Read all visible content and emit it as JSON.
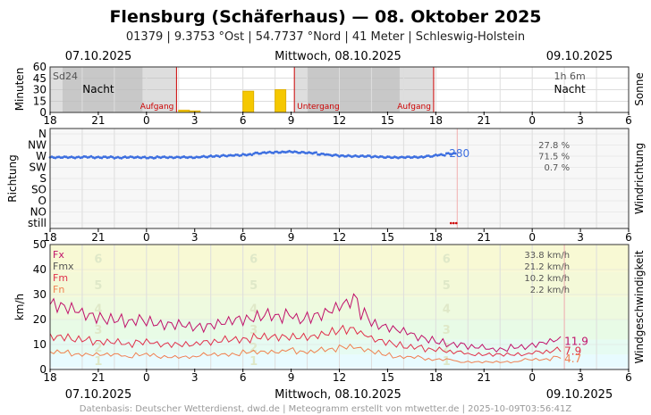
{
  "header": {
    "title": "Flensburg (Schäferhaus)  —  08. Oktober 2025",
    "subtitle": "01379  |  9.3753 °Ost  |  54.7737 °Nord  |  41 Meter  |  Schleswig-Holstein"
  },
  "dates": {
    "left": "07.10.2025",
    "center": "Mittwoch, 08.10.2025",
    "right": "09.10.2025"
  },
  "x_ticks": [
    "18",
    "21",
    "0",
    "3",
    "6",
    "9",
    "12",
    "15",
    "18",
    "21",
    "0",
    "3",
    "6"
  ],
  "footer": "Datenbasis: Deutscher Wetterdienst, dwd.de | Meteogramm erstellt von mtwetter.de | 2025-10-09T03:56:41Z",
  "chart_data": [
    {
      "type": "bar",
      "name": "sun",
      "ylabel": "Minuten",
      "side_label": "Sonne",
      "y_ticks": [
        "0",
        "15",
        "30",
        "45",
        "60"
      ],
      "ylim": [
        0,
        60
      ],
      "xlim_hours": [
        18,
        72
      ],
      "corner_label": "Sd24",
      "duration_label": "1h 6m",
      "night_label": "Nacht",
      "sunrise_label": "Aufgang",
      "sunset_label": "Untergang",
      "bars": [
        {
          "hour": 30.5,
          "value": 3
        },
        {
          "hour": 31.5,
          "value": 2
        },
        {
          "hour": 36.5,
          "value": 28
        },
        {
          "hour": 39.5,
          "value": 30
        }
      ],
      "night_spans": [
        [
          18,
          29.8
        ],
        [
          40.8,
          53.8
        ]
      ],
      "sunrise_hours": [
        29.8,
        53.8
      ],
      "sunset_hours": [
        40.8
      ]
    },
    {
      "type": "scatter",
      "name": "direction",
      "ylabel": "Richtung",
      "side_label": "Windrichtung",
      "y_ticks": [
        "N",
        "NW",
        "W",
        "SW",
        "S",
        "SO",
        "O",
        "NO",
        "still"
      ],
      "current_value": "280",
      "stats": [
        "27.8 %",
        "71.5 %",
        "0.7 %"
      ],
      "direction_deg_hourly": [
        265,
        266,
        265,
        267,
        265,
        266,
        264,
        266,
        265,
        264,
        266,
        265,
        266,
        265,
        268,
        270,
        272,
        274,
        276,
        282,
        285,
        286,
        288,
        285,
        283,
        278,
        274,
        271,
        270,
        270,
        268,
        266,
        265,
        266,
        266,
        270,
        275,
        280
      ]
    },
    {
      "type": "line",
      "name": "speed",
      "ylabel": "km/h",
      "side_label": "Windgeschwindigkeit",
      "y_ticks": [
        "0",
        "10",
        "20",
        "30",
        "40",
        "50"
      ],
      "ylim": [
        0,
        50
      ],
      "beaufort_labels": [
        "1",
        "2",
        "3",
        "4",
        "5",
        "6"
      ],
      "series": [
        {
          "name": "Fx",
          "color": "#c0106a",
          "current": "11.9",
          "stat": "33.8 km/h",
          "values_hourly": [
            26,
            25,
            24,
            22,
            21,
            20,
            20,
            19,
            20,
            19,
            18,
            18,
            18,
            17,
            17,
            18,
            19,
            20,
            20,
            21,
            22,
            21,
            22,
            20,
            21,
            22,
            24,
            26,
            28,
            22,
            18,
            17,
            16,
            15,
            13,
            12,
            11,
            10,
            10,
            9,
            9,
            8,
            8,
            9,
            9,
            10,
            11,
            12
          ]
        },
        {
          "name": "Fmx",
          "color": "#555555",
          "stat": "21.2 km/h",
          "values_hourly": []
        },
        {
          "name": "Fm",
          "color": "#e0304a",
          "current": "7.9",
          "stat": "10.2 km/h",
          "values_hourly": [
            13,
            13,
            12,
            12,
            11,
            11,
            11,
            10,
            11,
            11,
            10,
            10,
            10,
            10,
            11,
            11,
            12,
            12,
            12,
            13,
            13,
            13,
            13,
            13,
            13,
            14,
            15,
            16,
            16,
            14,
            12,
            11,
            10,
            9,
            9,
            8,
            8,
            7,
            7,
            6,
            6,
            6,
            6,
            6,
            6,
            7,
            7,
            8
          ]
        },
        {
          "name": "Fn",
          "color": "#f08050",
          "current": "4.7",
          "stat": "2.2 km/h",
          "values_hourly": [
            7,
            7,
            6,
            6,
            6,
            6,
            6,
            5,
            6,
            6,
            5,
            5,
            5,
            5,
            6,
            6,
            6,
            6,
            7,
            7,
            7,
            7,
            8,
            7,
            7,
            8,
            8,
            9,
            9,
            8,
            7,
            6,
            5,
            5,
            5,
            4,
            4,
            4,
            3,
            3,
            3,
            3,
            3,
            3,
            4,
            4,
            4,
            5
          ]
        }
      ]
    }
  ]
}
